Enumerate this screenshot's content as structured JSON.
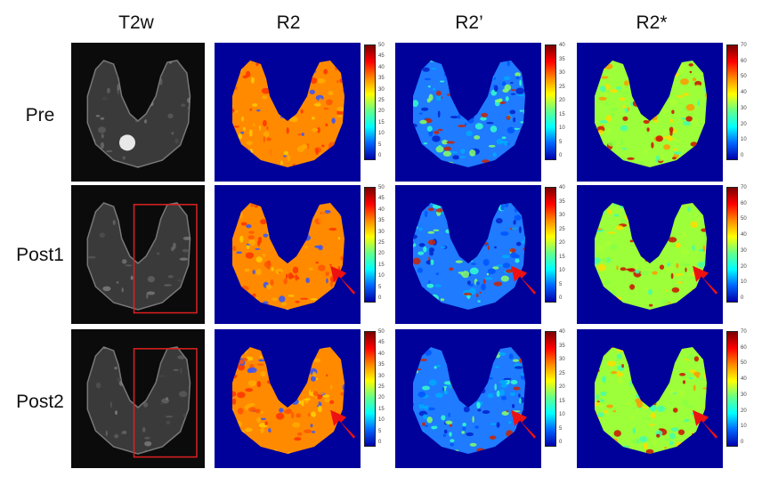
{
  "columns": [
    "T2w",
    "R2",
    "R2’",
    "R2*"
  ],
  "rows": [
    "Pre",
    "Post1",
    "Post2"
  ],
  "colorbar_ticks": {
    "R2": [
      "50",
      "45",
      "40",
      "35",
      "30",
      "25",
      "20",
      "15",
      "10",
      "5",
      "0"
    ],
    "R2prime": [
      "40",
      "35",
      "30",
      "25",
      "20",
      "15",
      "10",
      "5",
      "0"
    ],
    "R2star": [
      "70",
      "60",
      "50",
      "40",
      "30",
      "20",
      "10",
      "0"
    ]
  },
  "colors": {
    "background": "#00009a",
    "roi_box": "#e02020",
    "arrow": "#ee1111"
  },
  "annotations": {
    "roi_box_rows": [
      "Post1",
      "Post2"
    ],
    "arrow_rows": [
      "Post1",
      "Post2"
    ]
  }
}
